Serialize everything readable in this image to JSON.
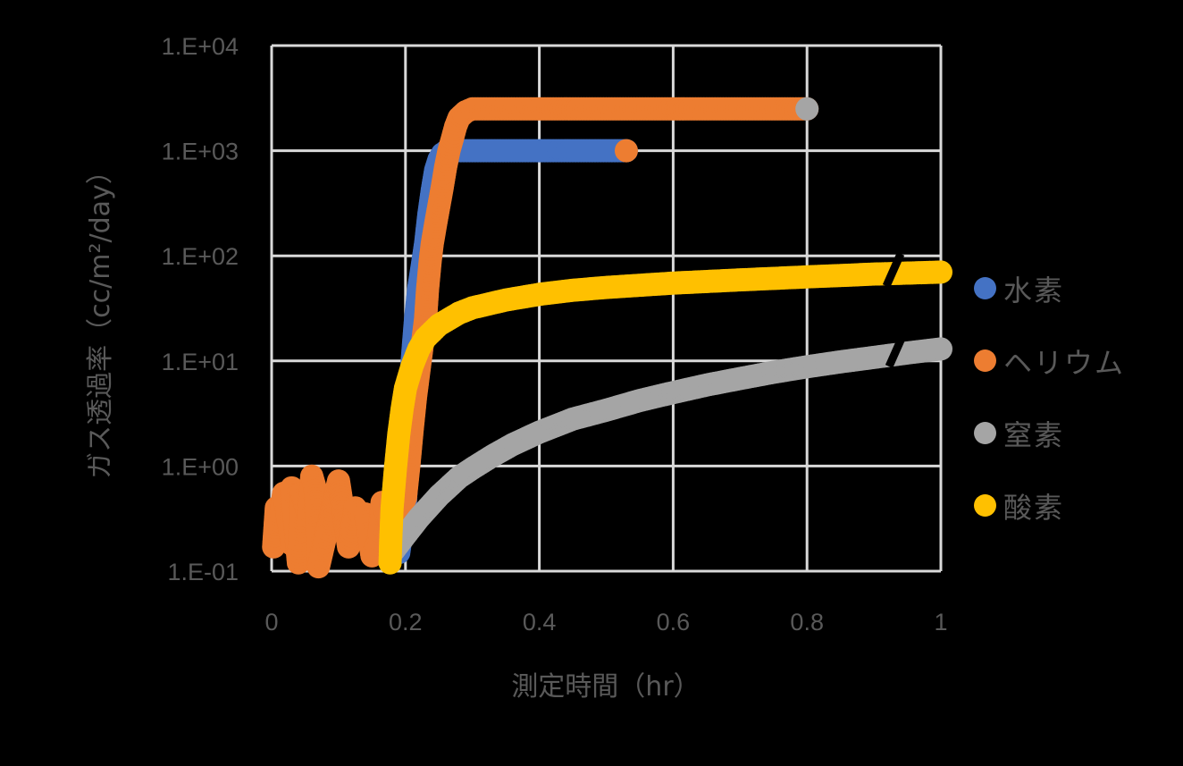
{
  "chart_data": {
    "type": "scatter",
    "title": "",
    "xlabel": "測定時間（hr）",
    "ylabel": "ガス透過率（cc/m²/day）",
    "xlim": [
      0,
      1
    ],
    "ylim": [
      0.1,
      10000
    ],
    "yscale": "log",
    "grid": true,
    "legend_position": "right",
    "x_ticks": [
      "0",
      "0.2",
      "0.4",
      "0.6",
      "0.8",
      "1"
    ],
    "x_tick_values": [
      0,
      0.2,
      0.4,
      0.6,
      0.8,
      1
    ],
    "y_ticks": [
      "1.E-01",
      "1.E+00",
      "1.E+01",
      "1.E+02",
      "1.E+03",
      "1.E+04"
    ],
    "y_tick_values": [
      0.1,
      1,
      10,
      100,
      1000,
      10000
    ],
    "series": [
      {
        "name": "水素",
        "color": "#4472C4",
        "points": [
          [
            0.19,
            0.15
          ],
          [
            0.195,
            0.25
          ],
          [
            0.2,
            0.45
          ],
          [
            0.205,
            2
          ],
          [
            0.21,
            10
          ],
          [
            0.215,
            25
          ],
          [
            0.22,
            50
          ],
          [
            0.225,
            80
          ],
          [
            0.23,
            130
          ],
          [
            0.235,
            250
          ],
          [
            0.24,
            420
          ],
          [
            0.245,
            650
          ],
          [
            0.25,
            820
          ],
          [
            0.255,
            930
          ],
          [
            0.26,
            980
          ],
          [
            0.27,
            1000
          ],
          [
            0.3,
            1000
          ],
          [
            0.35,
            1000
          ],
          [
            0.4,
            1000
          ],
          [
            0.45,
            1000
          ],
          [
            0.5,
            1000
          ],
          [
            0.53,
            1000
          ]
        ]
      },
      {
        "name": "ヘリウム",
        "color": "#ED7D31",
        "points": [
          [
            0.003,
            0.17
          ],
          [
            0.007,
            0.4
          ],
          [
            0.012,
            0.3
          ],
          [
            0.018,
            0.55
          ],
          [
            0.025,
            0.3
          ],
          [
            0.03,
            0.18
          ],
          [
            0.03,
            0.62
          ],
          [
            0.04,
            0.12
          ],
          [
            0.045,
            0.55
          ],
          [
            0.055,
            0.33
          ],
          [
            0.06,
            0.8
          ],
          [
            0.065,
            0.62
          ],
          [
            0.07,
            0.11
          ],
          [
            0.1,
            0.72
          ],
          [
            0.115,
            0.17
          ],
          [
            0.125,
            0.4
          ],
          [
            0.135,
            0.33
          ],
          [
            0.14,
            0.35
          ],
          [
            0.15,
            0.14
          ],
          [
            0.16,
            0.2
          ],
          [
            0.165,
            0.45
          ],
          [
            0.175,
            0.3
          ],
          [
            0.185,
            0.2
          ],
          [
            0.19,
            0.35
          ],
          [
            0.2,
            0.5
          ],
          [
            0.205,
            1
          ],
          [
            0.21,
            2.2
          ],
          [
            0.215,
            4.5
          ],
          [
            0.22,
            8
          ],
          [
            0.225,
            14
          ],
          [
            0.23,
            25
          ],
          [
            0.233,
            48
          ],
          [
            0.237,
            90
          ],
          [
            0.24,
            130
          ],
          [
            0.245,
            200
          ],
          [
            0.25,
            300
          ],
          [
            0.255,
            450
          ],
          [
            0.26,
            700
          ],
          [
            0.265,
            1000
          ],
          [
            0.27,
            1300
          ],
          [
            0.275,
            1700
          ],
          [
            0.28,
            2050
          ],
          [
            0.29,
            2350
          ],
          [
            0.3,
            2500
          ],
          [
            0.4,
            2500
          ],
          [
            0.5,
            2500
          ],
          [
            0.6,
            2500
          ],
          [
            0.7,
            2500
          ],
          [
            0.8,
            2500
          ],
          [
            0.53,
            1000
          ]
        ]
      },
      {
        "name": "窒素",
        "color": "#A5A5A5",
        "points": [
          [
            0.18,
            0.15
          ],
          [
            0.2,
            0.22
          ],
          [
            0.22,
            0.32
          ],
          [
            0.25,
            0.52
          ],
          [
            0.28,
            0.78
          ],
          [
            0.3,
            0.95
          ],
          [
            0.33,
            1.25
          ],
          [
            0.36,
            1.6
          ],
          [
            0.4,
            2.1
          ],
          [
            0.45,
            2.8
          ],
          [
            0.5,
            3.4
          ],
          [
            0.55,
            4.2
          ],
          [
            0.6,
            5
          ],
          [
            0.65,
            5.9
          ],
          [
            0.7,
            6.8
          ],
          [
            0.75,
            7.8
          ],
          [
            0.8,
            8.8
          ],
          [
            0.85,
            9.8
          ],
          [
            0.9,
            10.8
          ],
          [
            0.95,
            11.9
          ],
          [
            1.0,
            13
          ],
          [
            0.8,
            2500
          ]
        ]
      },
      {
        "name": "酸素",
        "color": "#FFC000",
        "points": [
          [
            0.177,
            0.12
          ],
          [
            0.178,
            0.2
          ],
          [
            0.18,
            0.4
          ],
          [
            0.185,
            0.95
          ],
          [
            0.19,
            2
          ],
          [
            0.195,
            3.5
          ],
          [
            0.2,
            5.5
          ],
          [
            0.21,
            9
          ],
          [
            0.22,
            13
          ],
          [
            0.23,
            16.5
          ],
          [
            0.25,
            22
          ],
          [
            0.28,
            28.5
          ],
          [
            0.3,
            32
          ],
          [
            0.35,
            38
          ],
          [
            0.4,
            43
          ],
          [
            0.45,
            47
          ],
          [
            0.5,
            50
          ],
          [
            0.6,
            55
          ],
          [
            0.7,
            59
          ],
          [
            0.8,
            63
          ],
          [
            0.9,
            67
          ],
          [
            1.0,
            70
          ]
        ]
      }
    ],
    "annotations": [
      "axis break marks on 酸素 and 窒素 series near x≈0.93"
    ]
  },
  "legend": {
    "items": [
      {
        "label": "水素",
        "color": "#4472C4"
      },
      {
        "label": "ヘリウム",
        "color": "#ED7D31"
      },
      {
        "label": "窒素",
        "color": "#A5A5A5"
      },
      {
        "label": "酸素",
        "color": "#FFC000"
      }
    ]
  },
  "style": {
    "background": "#000000",
    "grid_color": "#D9D9D9",
    "text_color": "#595959"
  }
}
